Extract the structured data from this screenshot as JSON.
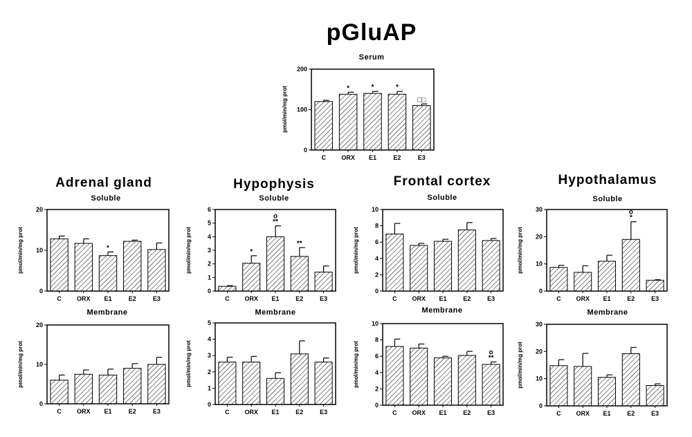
{
  "figure_title": "pGluAP",
  "panel_groups": [
    {
      "title": ""
    },
    {
      "title": "Adrenal gland"
    },
    {
      "title": "Hypophysis"
    },
    {
      "title": "Frontal cortex"
    },
    {
      "title": "Hypothalamus"
    }
  ],
  "chart_data": [
    {
      "type": "bar",
      "subtitle": "Serum",
      "ylabel": "pmol/min/mg prot",
      "categories": [
        "C",
        "ORX",
        "E1",
        "E2",
        "E3"
      ],
      "values": [
        120,
        138,
        140,
        138,
        110
      ],
      "errors": [
        3,
        5,
        5,
        7,
        4
      ],
      "annotations": [
        "",
        "*",
        "*",
        "*",
        "□□"
      ],
      "ylim": [
        0,
        200
      ],
      "yticks": [
        0,
        100,
        200
      ],
      "fill": "hatched"
    },
    {
      "type": "bar",
      "subtitle": "Soluble",
      "ylabel": "pmol/min/mg prot",
      "categories": [
        "C",
        "ORX",
        "E1",
        "E2",
        "E3"
      ],
      "values": [
        12.8,
        11.7,
        8.7,
        12.2,
        10.2
      ],
      "errors": [
        0.7,
        1.1,
        0.9,
        0.3,
        1.6
      ],
      "annotations": [
        "",
        "",
        "*",
        "",
        ""
      ],
      "ylim": [
        0,
        20
      ],
      "yticks": [
        0,
        10,
        20
      ],
      "fill": "hatched"
    },
    {
      "type": "bar",
      "subtitle": "Soluble",
      "ylabel": "pmol/min/mg prot",
      "categories": [
        "C",
        "ORX",
        "E1",
        "E2",
        "E3"
      ],
      "values": [
        0.35,
        2.05,
        4.0,
        2.55,
        1.4
      ],
      "errors": [
        0.05,
        0.55,
        0.8,
        0.65,
        0.45
      ],
      "annotations": [
        "",
        "*",
        "**\no",
        "**",
        ""
      ],
      "ylim": [
        0,
        6
      ],
      "yticks": [
        0,
        1,
        2,
        3,
        4,
        5,
        6
      ],
      "fill": "hatched"
    },
    {
      "type": "bar",
      "subtitle": "Soluble",
      "ylabel": "pmol/min/mg prot",
      "categories": [
        "C",
        "ORX",
        "E1",
        "E2",
        "E3"
      ],
      "values": [
        7.0,
        5.6,
        6.1,
        7.5,
        6.2
      ],
      "errors": [
        1.3,
        0.25,
        0.25,
        0.9,
        0.25
      ],
      "annotations": [
        "",
        "",
        "",
        "",
        ""
      ],
      "ylim": [
        0,
        10
      ],
      "yticks": [
        0,
        2,
        4,
        6,
        8,
        10
      ],
      "fill": "hatched"
    },
    {
      "type": "bar",
      "subtitle": "Soluble",
      "ylabel": "pmol/min/mg prot",
      "categories": [
        "C",
        "ORX",
        "E1",
        "E2",
        "E3"
      ],
      "values": [
        8.7,
        6.9,
        11.0,
        19.0,
        4.0
      ],
      "errors": [
        0.8,
        2.4,
        2.2,
        6.5,
        0.2
      ],
      "annotations": [
        "",
        "",
        "",
        "*\no",
        ""
      ],
      "ylim": [
        0,
        30
      ],
      "yticks": [
        0,
        10,
        20,
        30
      ],
      "fill": "hatched"
    },
    {
      "type": "bar",
      "subtitle": "Membrane",
      "ylabel": "pmol/min/mg prot",
      "categories": [
        "C",
        "ORX",
        "E1",
        "E2",
        "E3"
      ],
      "values": [
        6.0,
        7.5,
        7.3,
        9.0,
        10.0
      ],
      "errors": [
        1.3,
        1.1,
        1.5,
        1.2,
        1.8
      ],
      "annotations": [
        "",
        "",
        "",
        "",
        ""
      ],
      "ylim": [
        0,
        20
      ],
      "yticks": [
        0,
        10,
        20
      ],
      "fill": "hatched"
    },
    {
      "type": "bar",
      "subtitle": "Membrane",
      "ylabel": "pmol/min/mg prot",
      "categories": [
        "C",
        "ORX",
        "E1",
        "E2",
        "E3"
      ],
      "values": [
        2.6,
        2.6,
        1.6,
        3.1,
        2.6
      ],
      "errors": [
        0.3,
        0.35,
        0.35,
        0.8,
        0.25
      ],
      "annotations": [
        "",
        "",
        "",
        "",
        ""
      ],
      "ylim": [
        0,
        5
      ],
      "yticks": [
        0,
        1,
        2,
        3,
        4,
        5
      ],
      "fill": "hatched"
    },
    {
      "type": "bar",
      "subtitle": "Membrane",
      "ylabel": "pmol/min/mg prot",
      "categories": [
        "C",
        "ORX",
        "E1",
        "E2",
        "E3"
      ],
      "values": [
        7.2,
        7.0,
        5.8,
        6.1,
        5.0
      ],
      "errors": [
        0.9,
        0.5,
        0.2,
        0.5,
        0.3
      ],
      "annotations": [
        "",
        "",
        "",
        "",
        "**\no"
      ],
      "ylim": [
        0,
        10
      ],
      "yticks": [
        0,
        2,
        4,
        6,
        8,
        10
      ],
      "fill": "hatched"
    },
    {
      "type": "bar",
      "subtitle": "Membrane",
      "ylabel": "pmol/min/mg prot",
      "categories": [
        "C",
        "ORX",
        "E1",
        "E2",
        "E3"
      ],
      "values": [
        14.8,
        14.5,
        10.5,
        19.2,
        7.5
      ],
      "errors": [
        2.2,
        4.8,
        0.9,
        2.3,
        0.6
      ],
      "annotations": [
        "",
        "",
        "",
        "",
        ""
      ],
      "ylim": [
        0,
        30
      ],
      "yticks": [
        0,
        10,
        20,
        30
      ],
      "fill": "hatched"
    }
  ]
}
